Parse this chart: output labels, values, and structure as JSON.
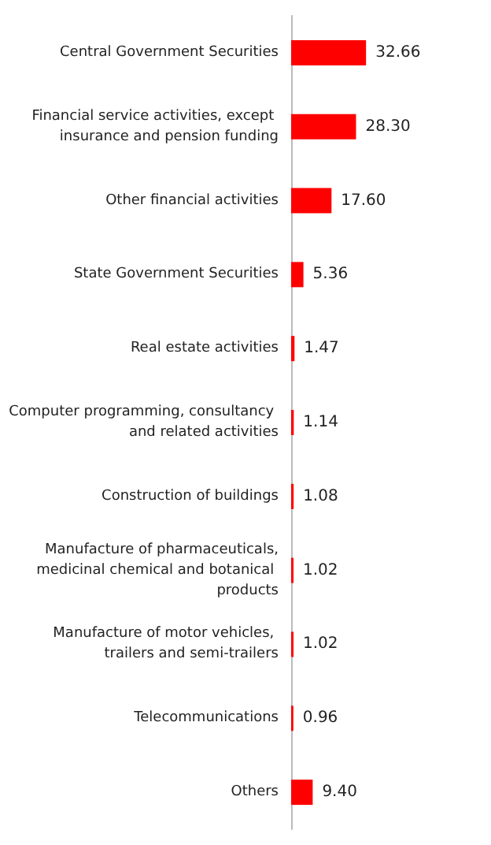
{
  "chart_data": {
    "type": "bar",
    "orientation": "horizontal",
    "value_labels": [
      "32.66",
      "28.30",
      "17.60",
      "5.36",
      "1.47",
      "1.14",
      "1.08",
      "1.02",
      "1.02",
      "0.96",
      "9.40"
    ],
    "color": "#ff0000",
    "categories": [
      "Central Government Securities",
      "Financial service activities, except insurance and pension funding",
      "Other financial activities",
      "State Government Securities",
      "Real estate activities",
      "Computer programming, consultancy and related activities",
      "Construction of buildings",
      "Manufacture of pharmaceuticals,medicinal chemical and botanical products",
      "Manufacture of motor vehicles, trailers and semi-trailers",
      "Telecommunications",
      "Others"
    ],
    "values": [
      32.66,
      28.3,
      17.6,
      5.36,
      1.47,
      1.14,
      1.08,
      1.02,
      1.02,
      0.96,
      9.4
    ]
  }
}
